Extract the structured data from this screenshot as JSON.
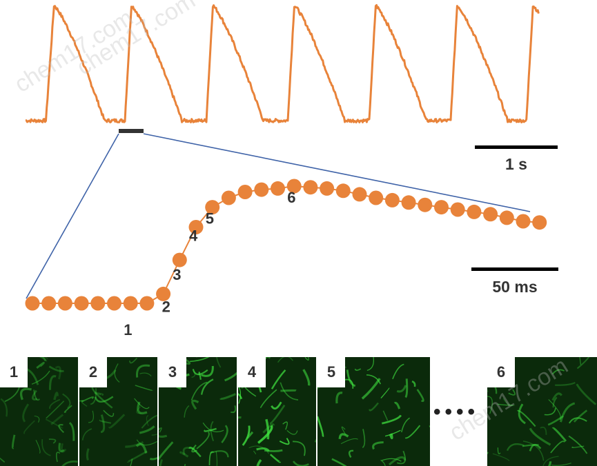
{
  "colors": {
    "trace": "#E8833A",
    "zoom_lines": "#3F63A8",
    "scale_bar": "#000000",
    "marker_bar": "#333333",
    "label_text": "#333333",
    "micro_dark": "#0b2a0b",
    "micro_green": "#3fe03f"
  },
  "watermarks": [
    "chem17.com",
    "chem17.com",
    "chem17.com"
  ],
  "scale_bars": {
    "top_label": "1 s",
    "bottom_label": "50 ms"
  },
  "chart_data": [
    {
      "type": "line",
      "description_role": "calcium transient trace",
      "units": {
        "x": "s"
      },
      "time_scale_bar_s": 1,
      "peak_times_s": [
        0.35,
        1.3,
        2.3,
        3.3,
        4.3,
        5.3,
        6.23
      ],
      "rise_times_s": [
        0.25,
        1.22,
        2.22,
        3.22,
        4.22,
        5.22,
        6.15
      ],
      "baseline": 0.0,
      "peak_height": 1.0,
      "segment_highlight_s": [
        1.18,
        1.48
      ]
    },
    {
      "type": "scatter",
      "description_role": "zoomed upstroke sampled points",
      "units": {
        "x": "ms"
      },
      "time_scale_bar_ms": 50,
      "x": [
        0,
        11,
        22,
        33,
        44,
        55,
        66,
        77,
        88,
        99,
        110,
        121,
        132,
        143,
        154,
        165,
        176,
        187,
        198,
        209,
        220,
        231,
        242,
        253,
        264,
        275,
        286,
        297,
        308,
        319,
        330,
        341
      ],
      "y": [
        0.0,
        0.0,
        0.0,
        0.0,
        0.0,
        0.0,
        0.0,
        0.0,
        0.08,
        0.37,
        0.65,
        0.82,
        0.9,
        0.95,
        0.97,
        0.98,
        1.0,
        0.99,
        0.98,
        0.96,
        0.93,
        0.9,
        0.88,
        0.86,
        0.84,
        0.82,
        0.8,
        0.78,
        0.76,
        0.73,
        0.7,
        0.69
      ],
      "annotations": [
        {
          "label": "1",
          "point_index": 6
        },
        {
          "label": "2",
          "point_index": 8
        },
        {
          "label": "3",
          "point_index": 9
        },
        {
          "label": "4",
          "point_index": 10
        },
        {
          "label": "5",
          "point_index": 11
        },
        {
          "label": "6",
          "point_index": 16
        }
      ]
    }
  ],
  "frames": [
    {
      "label": "1"
    },
    {
      "label": "2"
    },
    {
      "label": "3"
    },
    {
      "label": "4"
    },
    {
      "label": "5"
    },
    {
      "label": "6"
    }
  ],
  "ellipsis": "••••"
}
